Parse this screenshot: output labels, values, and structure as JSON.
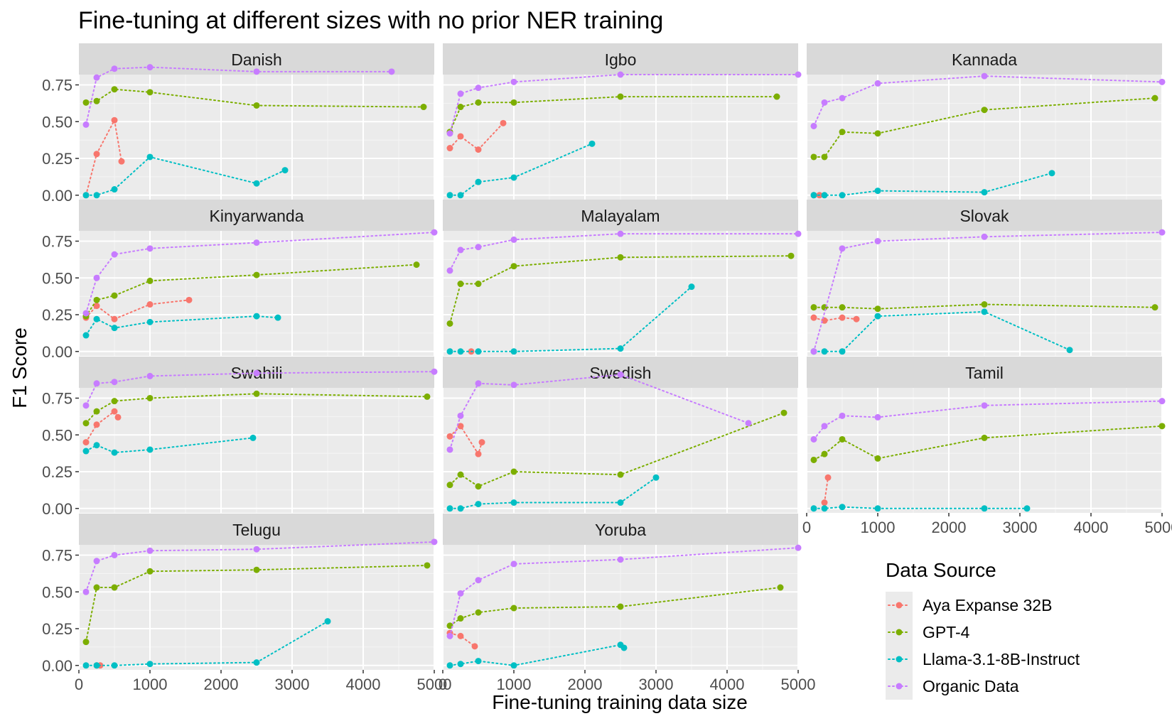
{
  "chart_data": {
    "type": "line",
    "title": "Fine-tuning at different sizes with no prior NER training",
    "xlabel": "Fine-tuning training data size",
    "ylabel": "F1 Score",
    "xlim": [
      0,
      5000
    ],
    "ylim": [
      -0.03,
      0.82
    ],
    "xticks": [
      0,
      1000,
      2000,
      3000,
      4000,
      5000
    ],
    "xtick_labels": [
      "0",
      "1000",
      "2000",
      "3000",
      "4000",
      "5000"
    ],
    "yticks": [
      0,
      0.25,
      0.5,
      0.75
    ],
    "ytick_labels": [
      "0.00",
      "0.25",
      "0.50",
      "0.75"
    ],
    "legend": {
      "title": "Data Source",
      "position": "bottom-right",
      "entries": [
        {
          "name": "Aya Expanse 32B",
          "color": "#F8766D"
        },
        {
          "name": "GPT-4",
          "color": "#7CAE00"
        },
        {
          "name": "Llama-3.1-8B-Instruct",
          "color": "#00BFC4"
        },
        {
          "name": "Organic Data",
          "color": "#C77CFF"
        }
      ]
    },
    "panels": [
      {
        "name": "Danish",
        "series": {
          "Aya Expanse 32B": [
            [
              100,
              0.0
            ],
            [
              250,
              0.28
            ],
            [
              500,
              0.51
            ],
            [
              600,
              0.23
            ]
          ],
          "GPT-4": [
            [
              100,
              0.63
            ],
            [
              250,
              0.64
            ],
            [
              500,
              0.72
            ],
            [
              1000,
              0.7
            ],
            [
              2500,
              0.61
            ],
            [
              4850,
              0.6
            ]
          ],
          "Llama-3.1-8B-Instruct": [
            [
              100,
              0.0
            ],
            [
              250,
              0.0
            ],
            [
              500,
              0.04
            ],
            [
              1000,
              0.26
            ],
            [
              2500,
              0.08
            ],
            [
              2900,
              0.17
            ]
          ],
          "Organic Data": [
            [
              100,
              0.48
            ],
            [
              250,
              0.8
            ],
            [
              500,
              0.86
            ],
            [
              1000,
              0.87
            ],
            [
              2500,
              0.84
            ],
            [
              4400,
              0.84
            ]
          ]
        }
      },
      {
        "name": "Igbo",
        "series": {
          "Aya Expanse 32B": [
            [
              100,
              0.32
            ],
            [
              250,
              0.4
            ],
            [
              500,
              0.31
            ],
            [
              850,
              0.49
            ]
          ],
          "GPT-4": [
            [
              100,
              0.43
            ],
            [
              250,
              0.6
            ],
            [
              500,
              0.63
            ],
            [
              1000,
              0.63
            ],
            [
              2500,
              0.67
            ],
            [
              4700,
              0.67
            ]
          ],
          "Llama-3.1-8B-Instruct": [
            [
              100,
              0.0
            ],
            [
              250,
              0.0
            ],
            [
              500,
              0.09
            ],
            [
              1000,
              0.12
            ],
            [
              2100,
              0.35
            ]
          ],
          "Organic Data": [
            [
              100,
              0.42
            ],
            [
              250,
              0.69
            ],
            [
              500,
              0.73
            ],
            [
              1000,
              0.77
            ],
            [
              2500,
              0.82
            ],
            [
              5000,
              0.82
            ]
          ]
        }
      },
      {
        "name": "Kannada",
        "series": {
          "Aya Expanse 32B": [
            [
              100,
              0.0
            ],
            [
              180,
              0.0
            ]
          ],
          "GPT-4": [
            [
              100,
              0.26
            ],
            [
              250,
              0.26
            ],
            [
              500,
              0.43
            ],
            [
              1000,
              0.42
            ],
            [
              2500,
              0.58
            ],
            [
              4900,
              0.66
            ]
          ],
          "Llama-3.1-8B-Instruct": [
            [
              100,
              0.0
            ],
            [
              250,
              0.0
            ],
            [
              500,
              0.0
            ],
            [
              1000,
              0.03
            ],
            [
              2500,
              0.02
            ],
            [
              3450,
              0.15
            ]
          ],
          "Organic Data": [
            [
              100,
              0.47
            ],
            [
              250,
              0.63
            ],
            [
              500,
              0.66
            ],
            [
              1000,
              0.76
            ],
            [
              2500,
              0.81
            ],
            [
              5000,
              0.77
            ]
          ]
        }
      },
      {
        "name": "Kinyarwanda",
        "series": {
          "Aya Expanse 32B": [
            [
              100,
              0.23
            ],
            [
              250,
              0.31
            ],
            [
              500,
              0.22
            ],
            [
              1000,
              0.32
            ],
            [
              1550,
              0.35
            ]
          ],
          "GPT-4": [
            [
              100,
              0.24
            ],
            [
              250,
              0.35
            ],
            [
              500,
              0.38
            ],
            [
              1000,
              0.48
            ],
            [
              2500,
              0.52
            ],
            [
              4750,
              0.59
            ]
          ],
          "Llama-3.1-8B-Instruct": [
            [
              100,
              0.11
            ],
            [
              250,
              0.22
            ],
            [
              500,
              0.16
            ],
            [
              1000,
              0.2
            ],
            [
              2500,
              0.24
            ],
            [
              2800,
              0.23
            ]
          ],
          "Organic Data": [
            [
              100,
              0.26
            ],
            [
              250,
              0.5
            ],
            [
              500,
              0.66
            ],
            [
              1000,
              0.7
            ],
            [
              2500,
              0.74
            ],
            [
              5000,
              0.81
            ]
          ]
        }
      },
      {
        "name": "Malayalam",
        "series": {
          "Aya Expanse 32B": [
            [
              400,
              0.0
            ]
          ],
          "GPT-4": [
            [
              100,
              0.19
            ],
            [
              250,
              0.46
            ],
            [
              500,
              0.46
            ],
            [
              1000,
              0.58
            ],
            [
              2500,
              0.64
            ],
            [
              4900,
              0.65
            ]
          ],
          "Llama-3.1-8B-Instruct": [
            [
              100,
              0.0
            ],
            [
              250,
              0.0
            ],
            [
              500,
              0.0
            ],
            [
              1000,
              0.0
            ],
            [
              2500,
              0.02
            ],
            [
              3500,
              0.44
            ]
          ],
          "Organic Data": [
            [
              100,
              0.55
            ],
            [
              250,
              0.69
            ],
            [
              500,
              0.71
            ],
            [
              1000,
              0.76
            ],
            [
              2500,
              0.8
            ],
            [
              5000,
              0.8
            ]
          ]
        }
      },
      {
        "name": "Slovak",
        "series": {
          "Aya Expanse 32B": [
            [
              100,
              0.23
            ],
            [
              250,
              0.21
            ],
            [
              500,
              0.23
            ],
            [
              700,
              0.22
            ]
          ],
          "GPT-4": [
            [
              100,
              0.3
            ],
            [
              250,
              0.3
            ],
            [
              500,
              0.3
            ],
            [
              1000,
              0.29
            ],
            [
              2500,
              0.32
            ],
            [
              4900,
              0.3
            ]
          ],
          "Llama-3.1-8B-Instruct": [
            [
              100,
              0.0
            ],
            [
              250,
              0.0
            ],
            [
              500,
              0.0
            ],
            [
              1000,
              0.24
            ],
            [
              2500,
              0.27
            ],
            [
              3700,
              0.01
            ]
          ],
          "Organic Data": [
            [
              100,
              0.0
            ],
            [
              500,
              0.7
            ],
            [
              1000,
              0.75
            ],
            [
              2500,
              0.78
            ],
            [
              5000,
              0.81
            ]
          ]
        }
      },
      {
        "name": "Swahili",
        "series": {
          "Aya Expanse 32B": [
            [
              100,
              0.45
            ],
            [
              250,
              0.57
            ],
            [
              500,
              0.66
            ],
            [
              550,
              0.62
            ]
          ],
          "GPT-4": [
            [
              100,
              0.58
            ],
            [
              250,
              0.66
            ],
            [
              500,
              0.73
            ],
            [
              1000,
              0.75
            ],
            [
              2500,
              0.78
            ],
            [
              4900,
              0.76
            ]
          ],
          "Llama-3.1-8B-Instruct": [
            [
              100,
              0.39
            ],
            [
              250,
              0.43
            ],
            [
              500,
              0.38
            ],
            [
              1000,
              0.4
            ],
            [
              2450,
              0.48
            ]
          ],
          "Organic Data": [
            [
              100,
              0.7
            ],
            [
              250,
              0.85
            ],
            [
              500,
              0.86
            ],
            [
              1000,
              0.9
            ],
            [
              2500,
              0.92
            ],
            [
              5000,
              0.93
            ]
          ]
        }
      },
      {
        "name": "Swedish",
        "series": {
          "Aya Expanse 32B": [
            [
              100,
              0.49
            ],
            [
              250,
              0.56
            ],
            [
              500,
              0.37
            ],
            [
              550,
              0.45
            ]
          ],
          "GPT-4": [
            [
              100,
              0.16
            ],
            [
              250,
              0.23
            ],
            [
              500,
              0.15
            ],
            [
              1000,
              0.25
            ],
            [
              2500,
              0.23
            ],
            [
              4800,
              0.65
            ]
          ],
          "Llama-3.1-8B-Instruct": [
            [
              100,
              0.0
            ],
            [
              250,
              0.0
            ],
            [
              500,
              0.03
            ],
            [
              1000,
              0.04
            ],
            [
              2500,
              0.04
            ],
            [
              3000,
              0.21
            ]
          ],
          "Organic Data": [
            [
              100,
              0.4
            ],
            [
              250,
              0.63
            ],
            [
              500,
              0.85
            ],
            [
              1000,
              0.84
            ],
            [
              2500,
              0.91
            ],
            [
              4300,
              0.58
            ]
          ]
        }
      },
      {
        "name": "Tamil",
        "series": {
          "Aya Expanse 32B": [
            [
              250,
              0.04
            ],
            [
              300,
              0.21
            ]
          ],
          "GPT-4": [
            [
              100,
              0.33
            ],
            [
              250,
              0.37
            ],
            [
              500,
              0.47
            ],
            [
              1000,
              0.34
            ],
            [
              2500,
              0.48
            ],
            [
              5000,
              0.56
            ]
          ],
          "Llama-3.1-8B-Instruct": [
            [
              100,
              0.0
            ],
            [
              250,
              0.0
            ],
            [
              500,
              0.01
            ],
            [
              1000,
              0.0
            ],
            [
              2500,
              0.0
            ],
            [
              3100,
              0.0
            ]
          ],
          "Organic Data": [
            [
              100,
              0.47
            ],
            [
              250,
              0.56
            ],
            [
              500,
              0.63
            ],
            [
              1000,
              0.62
            ],
            [
              2500,
              0.7
            ],
            [
              5000,
              0.73
            ]
          ]
        }
      },
      {
        "name": "Telugu",
        "series": {
          "Aya Expanse 32B": [
            [
              250,
              0.0
            ],
            [
              300,
              0.0
            ]
          ],
          "GPT-4": [
            [
              100,
              0.16
            ],
            [
              250,
              0.53
            ],
            [
              500,
              0.53
            ],
            [
              1000,
              0.64
            ],
            [
              2500,
              0.65
            ],
            [
              4900,
              0.68
            ]
          ],
          "Llama-3.1-8B-Instruct": [
            [
              100,
              0.0
            ],
            [
              250,
              0.0
            ],
            [
              500,
              0.0
            ],
            [
              1000,
              0.01
            ],
            [
              2500,
              0.02
            ],
            [
              3500,
              0.3
            ]
          ],
          "Organic Data": [
            [
              100,
              0.5
            ],
            [
              250,
              0.71
            ],
            [
              500,
              0.75
            ],
            [
              1000,
              0.78
            ],
            [
              2500,
              0.79
            ],
            [
              5000,
              0.84
            ]
          ]
        }
      },
      {
        "name": "Yoruba",
        "series": {
          "Aya Expanse 32B": [
            [
              100,
              0.22
            ],
            [
              250,
              0.2
            ],
            [
              450,
              0.13
            ]
          ],
          "GPT-4": [
            [
              100,
              0.27
            ],
            [
              250,
              0.32
            ],
            [
              500,
              0.36
            ],
            [
              1000,
              0.39
            ],
            [
              2500,
              0.4
            ],
            [
              4750,
              0.53
            ]
          ],
          "Llama-3.1-8B-Instruct": [
            [
              100,
              0.0
            ],
            [
              250,
              0.01
            ],
            [
              500,
              0.03
            ],
            [
              1000,
              0.0
            ],
            [
              2500,
              0.14
            ],
            [
              2550,
              0.12
            ]
          ],
          "Organic Data": [
            [
              100,
              0.2
            ],
            [
              250,
              0.49
            ],
            [
              500,
              0.58
            ],
            [
              1000,
              0.69
            ],
            [
              2500,
              0.72
            ],
            [
              5000,
              0.8
            ]
          ]
        }
      }
    ]
  }
}
